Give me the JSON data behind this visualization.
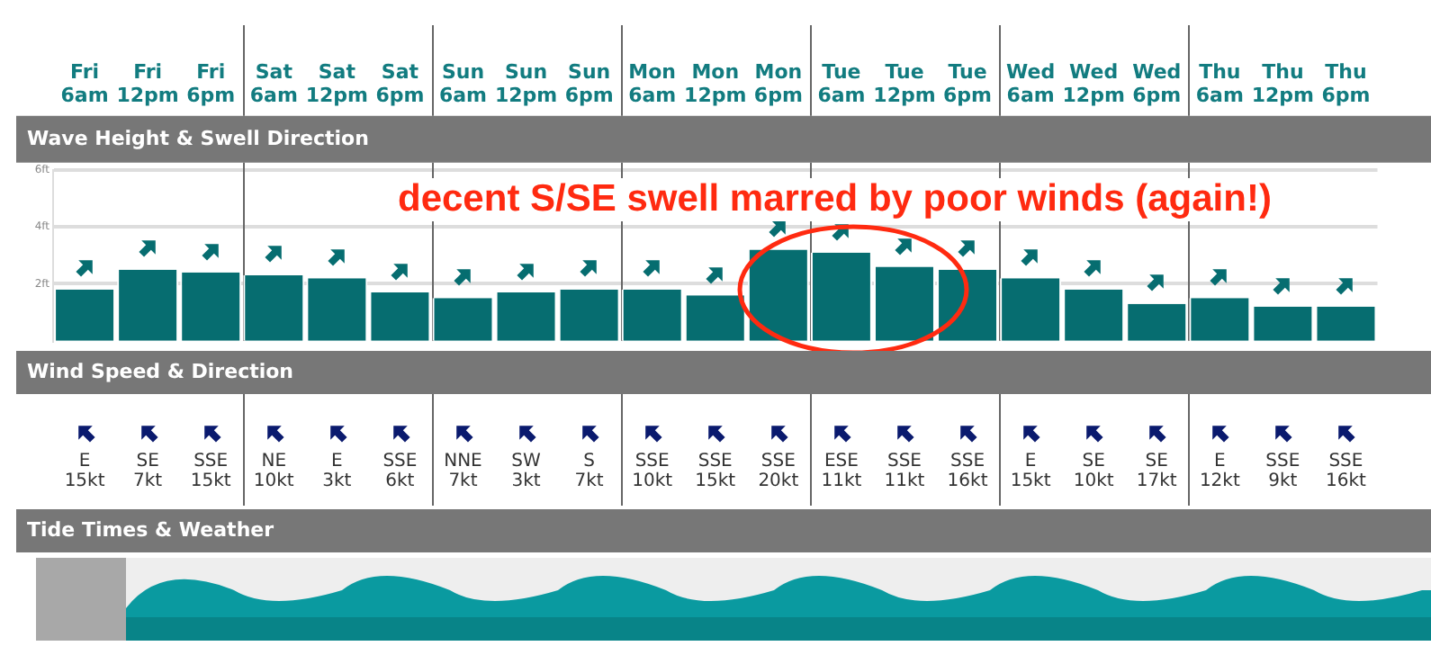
{
  "chart_data": [
    {
      "type": "bar",
      "title": "Wave Height & Swell Direction",
      "categories": [
        "Fri 6am",
        "Fri 12pm",
        "Fri 6pm",
        "Sat 6am",
        "Sat 12pm",
        "Sat 6pm",
        "Sun 6am",
        "Sun 12pm",
        "Sun 6pm",
        "Mon 6am",
        "Mon 12pm",
        "Mon 6pm",
        "Tue 6am",
        "Tue 12pm",
        "Tue 6pm",
        "Wed 6am",
        "Wed 12pm",
        "Wed 6pm",
        "Thu 6am",
        "Thu 12pm",
        "Thu 6pm"
      ],
      "values": [
        1.8,
        2.5,
        2.4,
        2.3,
        2.2,
        1.7,
        1.5,
        1.7,
        1.8,
        1.8,
        1.6,
        3.2,
        3.1,
        2.6,
        2.5,
        2.2,
        1.8,
        1.3,
        1.5,
        1.2,
        1.2
      ],
      "color": "#066d70",
      "ylim": [
        0,
        6
      ],
      "yticks": [
        {
          "value": 2,
          "label": "2ft"
        },
        {
          "value": 4,
          "label": "4ft"
        },
        {
          "value": 6,
          "label": "6ft"
        }
      ],
      "grid": "y",
      "annotations": [
        "decent S/SE swell marred by poor winds (again!)"
      ]
    },
    {
      "type": "other",
      "title": "Wind Speed & Direction",
      "annotations": [
        "E\n15kt",
        "SE\n7kt",
        "SSE\n15kt",
        "NE\n10kt",
        "E\n3kt",
        "SSE\n6kt",
        "NNE\n7kt",
        "SW\n3kt",
        "S\n7kt",
        "SSE\n10kt",
        "SSE\n15kt",
        "SSE\n20kt",
        "ESE\n11kt",
        "SSE\n11kt",
        "SSE\n16kt",
        "E\n15kt",
        "SE\n10kt",
        "SE\n17kt",
        "E\n12kt",
        "SSE\n9kt",
        "SSE\n16kt"
      ]
    },
    {
      "type": "other",
      "title": "Tide Times & Weather"
    }
  ]
}
